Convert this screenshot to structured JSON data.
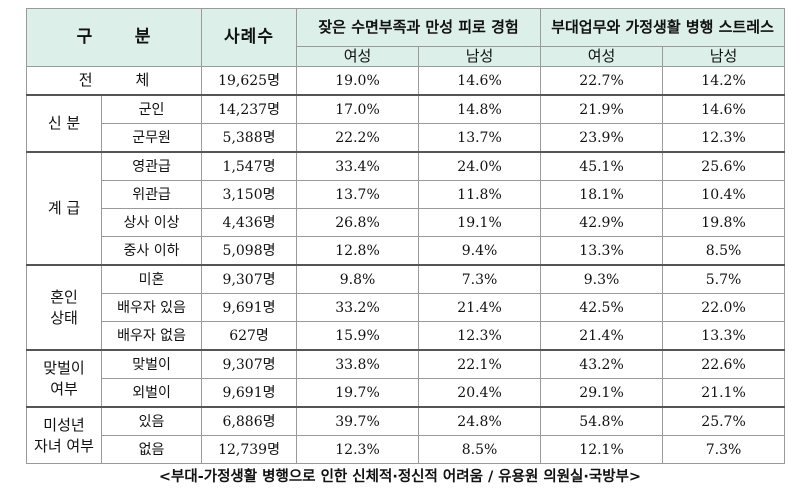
{
  "header": {
    "category": "구      분",
    "cases": "사례수",
    "group1": "잦은 수면부족과 만성 피로 경험",
    "group2": "부대업무와 가정생활 병행 스트레스",
    "female": "여성",
    "male": "남성"
  },
  "total": {
    "label": "전         체",
    "cases": "19,625명",
    "values": [
      "19.0%",
      "14.6%",
      "22.7%",
      "14.2%"
    ]
  },
  "groups": [
    {
      "label": "신 분",
      "rows": [
        {
          "sub": "군인",
          "cases": "14,237명",
          "values": [
            "17.0%",
            "14.8%",
            "21.9%",
            "14.6%"
          ]
        },
        {
          "sub": "군무원",
          "cases": "5,388명",
          "values": [
            "22.2%",
            "13.7%",
            "23.9%",
            "12.3%"
          ]
        }
      ]
    },
    {
      "label": "계 급",
      "rows": [
        {
          "sub": "영관급",
          "cases": "1,547명",
          "values": [
            "33.4%",
            "24.0%",
            "45.1%",
            "25.6%"
          ]
        },
        {
          "sub": "위관급",
          "cases": "3,150명",
          "values": [
            "13.7%",
            "11.8%",
            "18.1%",
            "10.4%"
          ]
        },
        {
          "sub": "상사 이상",
          "cases": "4,436명",
          "values": [
            "26.8%",
            "19.1%",
            "42.9%",
            "19.8%"
          ]
        },
        {
          "sub": "중사 이하",
          "cases": "5,098명",
          "values": [
            "12.8%",
            "9.4%",
            "13.3%",
            "8.5%"
          ]
        }
      ]
    },
    {
      "label": "혼인\n상태",
      "rows": [
        {
          "sub": "미혼",
          "cases": "9,307명",
          "values": [
            "9.8%",
            "7.3%",
            "9.3%",
            "5.7%"
          ]
        },
        {
          "sub": "배우자 있음",
          "cases": "9,691명",
          "values": [
            "33.2%",
            "21.4%",
            "42.5%",
            "22.0%"
          ]
        },
        {
          "sub": "배우자 없음",
          "cases": "627명",
          "values": [
            "15.9%",
            "12.3%",
            "21.4%",
            "13.3%"
          ]
        }
      ]
    },
    {
      "label": "맞벌이\n여부",
      "rows": [
        {
          "sub": "맞벌이",
          "cases": "9,307명",
          "values": [
            "33.8%",
            "22.1%",
            "43.2%",
            "22.6%"
          ]
        },
        {
          "sub": "외벌이",
          "cases": "9,691명",
          "values": [
            "19.7%",
            "20.4%",
            "29.1%",
            "21.1%"
          ]
        }
      ]
    },
    {
      "label": "미성년\n자녀 여부",
      "rows": [
        {
          "sub": "있음",
          "cases": "6,886명",
          "values": [
            "39.7%",
            "24.8%",
            "54.8%",
            "25.7%"
          ]
        },
        {
          "sub": "없음",
          "cases": "12,739명",
          "values": [
            "12.3%",
            "8.5%",
            "12.1%",
            "7.3%"
          ]
        }
      ]
    }
  ],
  "caption": "<부대-가정생활 병행으로 인한 신체적·정신적 어려움 / 유용원 의원실·국방부>",
  "colors": {
    "header_bg": "#dcefe9",
    "border": "#9a9a9a"
  }
}
